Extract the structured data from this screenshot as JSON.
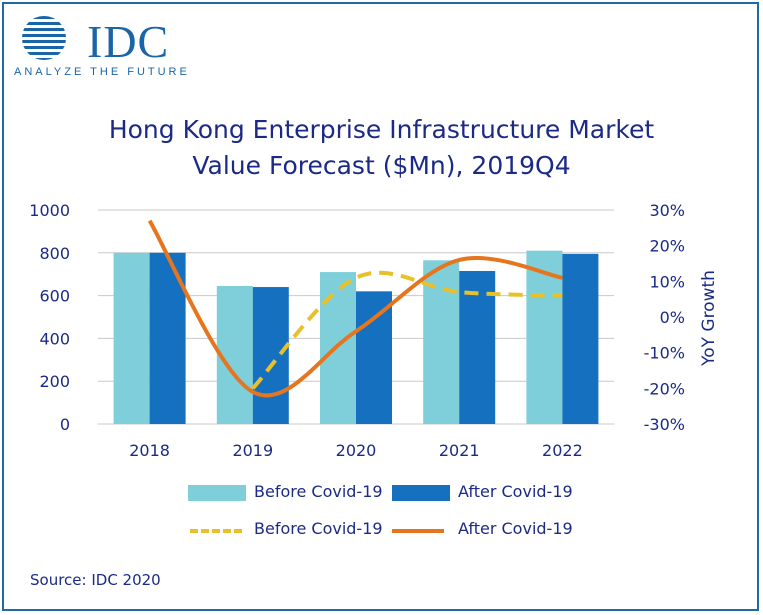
{
  "logo": {
    "word": "IDC",
    "tagline": "ANALYZE THE FUTURE"
  },
  "title_line1": "Hong Kong Enterprise Infrastructure Market",
  "title_line2": "Value Forecast ($Mn), 2019Q4",
  "source": "Source: IDC 2020",
  "colors": {
    "before_bar": "#7fcfdb",
    "after_bar": "#1570c0",
    "before_line": "#e8c02a",
    "after_line": "#e5761f",
    "axis_text": "#1b2a86",
    "grid": "#c8c8c8"
  },
  "chart_data": {
    "type": "bar",
    "title": "Hong Kong Enterprise Infrastructure Market Value Forecast ($Mn), 2019Q4",
    "categories": [
      "2018",
      "2019",
      "2020",
      "2021",
      "2022"
    ],
    "series": [
      {
        "name": "Before Covid-19",
        "kind": "bar",
        "axis": "left",
        "values": [
          800,
          645,
          710,
          765,
          810
        ]
      },
      {
        "name": "After Covid-19",
        "kind": "bar",
        "axis": "left",
        "values": [
          800,
          640,
          620,
          715,
          795
        ]
      },
      {
        "name": "Before Covid-19",
        "kind": "line",
        "style": "dashed",
        "axis": "right",
        "values": [
          null,
          -20,
          11,
          7,
          6
        ]
      },
      {
        "name": "After Covid-19",
        "kind": "line",
        "style": "solid",
        "axis": "right",
        "values": [
          27,
          -21,
          -4,
          16,
          11
        ]
      }
    ],
    "ylim": [
      0,
      1000
    ],
    "y2lim": [
      -30,
      30
    ],
    "y_ticks": [
      "0",
      "200",
      "400",
      "600",
      "800",
      "1000"
    ],
    "y2_ticks": [
      "-30%",
      "-20%",
      "-10%",
      "0%",
      "10%",
      "20%",
      "30%"
    ],
    "y2label": "YoY Growth",
    "grid": true,
    "legend_position": "bottom"
  }
}
